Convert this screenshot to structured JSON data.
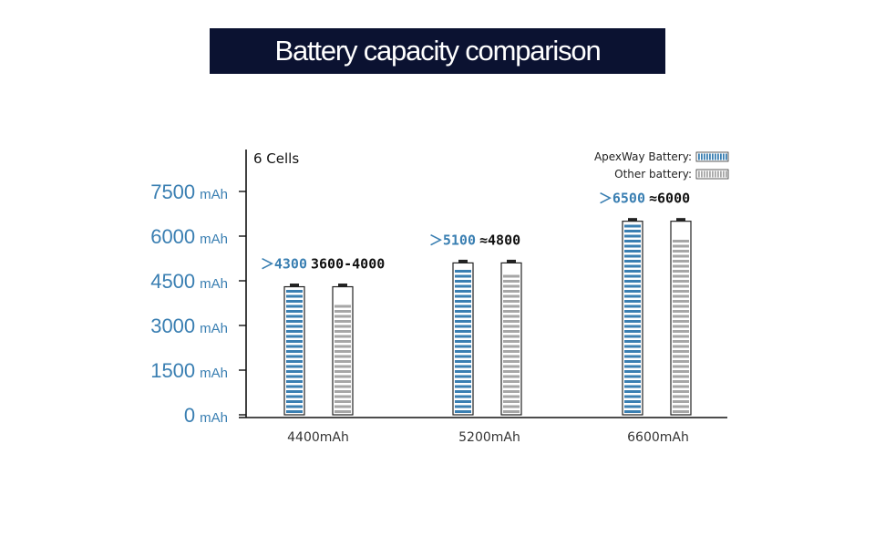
{
  "page": {
    "title": "Battery capacity comparison"
  },
  "chart_data": {
    "type": "bar",
    "title": "Battery capacity comparison",
    "subtitle": "6 Cells",
    "xlabel": "",
    "ylabel": "",
    "y_unit": "mAh",
    "ylim": [
      0,
      9000
    ],
    "yticks": [
      "0",
      "1500",
      "3000",
      "4500",
      "6000",
      "7500"
    ],
    "categories": [
      "4400mAh",
      "5200mAh",
      "6600mAh"
    ],
    "series": [
      {
        "name": "ApexWay Battery",
        "values": [
          4300,
          5100,
          6500
        ],
        "labels": [
          "＞4300",
          "＞5100",
          "＞6500"
        ],
        "color": "#3a7fb2"
      },
      {
        "name": "Other battery",
        "values": [
          3800,
          4800,
          6000
        ],
        "labels": [
          "3600-4000",
          "≈4800",
          "≈6000"
        ],
        "color": "#a6a6a6"
      }
    ],
    "grid": false,
    "legend_position": "top-right",
    "legend_suffix": ":"
  },
  "colors": {
    "title_bg": "#0b1231",
    "apex": "#3a7fb2",
    "other": "#a6a6a6",
    "axis": "#111111"
  }
}
